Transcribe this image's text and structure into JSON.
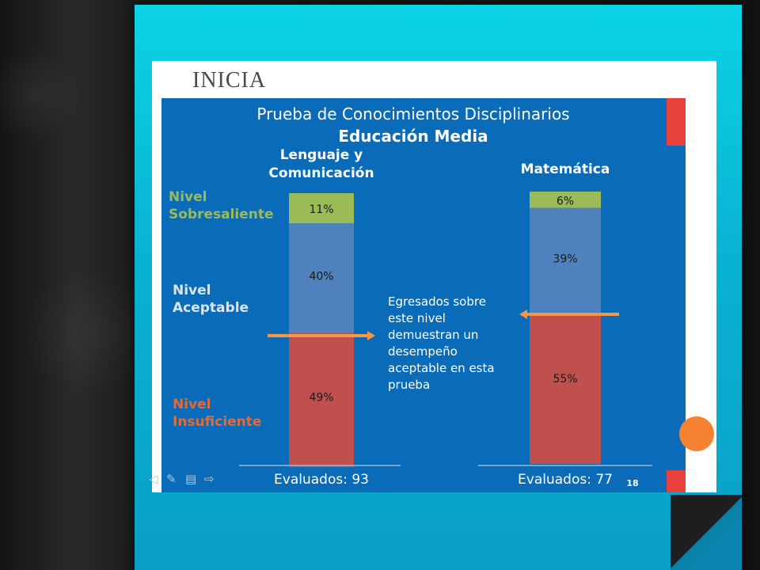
{
  "slide_heading": "INICIA",
  "page_number": "18",
  "chart_data": {
    "type": "bar",
    "stacked": true,
    "title": "Prueba de Conocimientos Disciplinarios",
    "subtitle": "Educación Media",
    "categories": [
      "Lenguaje y Comunicación",
      "Matemática"
    ],
    "series": [
      {
        "name": "Nivel Insuficiente",
        "values": [
          49,
          55
        ],
        "labels": [
          "49%",
          "55%"
        ],
        "color": "#c0504d"
      },
      {
        "name": "Nivel Aceptable",
        "values": [
          40,
          39
        ],
        "labels": [
          "40%",
          "39%"
        ],
        "color": "#4f81bd"
      },
      {
        "name": "Nivel Sobresaliente",
        "values": [
          11,
          6
        ],
        "labels": [
          "11%",
          "6%"
        ],
        "color": "#9bbb59"
      }
    ],
    "level_labels": {
      "sobresaliente": "Nivel\nSobresaliente",
      "aceptable": "Nivel\nAceptable",
      "insuficiente": "Nivel\nInsuficiente"
    },
    "annotation": "Egresados sobre\neste nivel\ndemuestran un\ndesempeño\naceptable en esta\nprueba",
    "evaluados": [
      "Evaluados: 93",
      "Evaluados: 77"
    ],
    "ylim": [
      0,
      100
    ],
    "arrow_color": "#f79646"
  }
}
